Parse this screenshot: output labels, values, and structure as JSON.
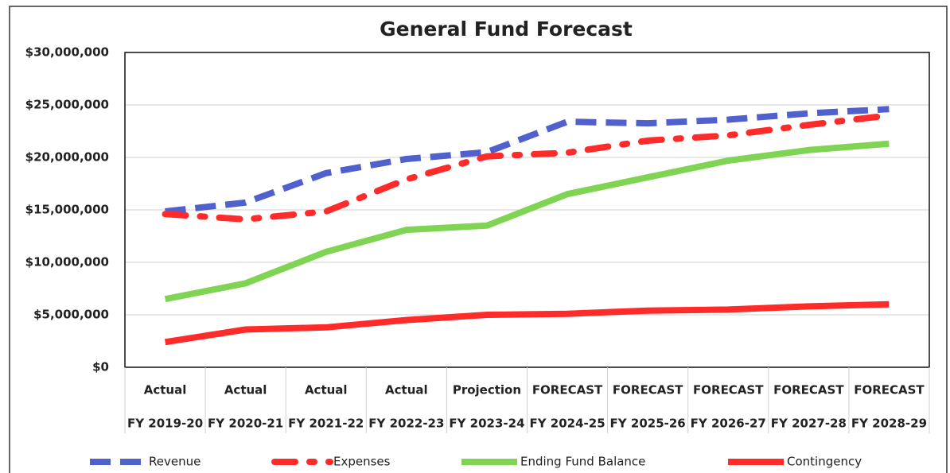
{
  "chart_data": {
    "type": "line",
    "title": "General Fund Forecast",
    "categories": [
      "FY 2019-20",
      "FY 2020-21",
      "FY 2021-22",
      "FY 2022-23",
      "FY 2023-24",
      "FY 2024-25",
      "FY 2025-26",
      "FY 2026-27",
      "FY 2027-28",
      "FY 2028-29"
    ],
    "category_groups": [
      "Actual",
      "Actual",
      "Actual",
      "Actual",
      "Projection",
      "FORECAST",
      "FORECAST",
      "FORECAST",
      "FORECAST",
      "FORECAST"
    ],
    "series": [
      {
        "name": "Revenue",
        "color": "#5060cc",
        "dash": "dash",
        "values": [
          14850000,
          15700000,
          18500000,
          19850000,
          20500000,
          23400000,
          23250000,
          23600000,
          24200000,
          24600000
        ]
      },
      {
        "name": "Expenses",
        "color": "#ff2a2a",
        "dash": "dashdot",
        "values": [
          14600000,
          14100000,
          14850000,
          17900000,
          20100000,
          20450000,
          21600000,
          22100000,
          23100000,
          24000000
        ]
      },
      {
        "name": "Ending Fund Balance",
        "color": "#80d453",
        "dash": "solid",
        "values": [
          6500000,
          8000000,
          11000000,
          13100000,
          13500000,
          16500000,
          18100000,
          19700000,
          20700000,
          21300000
        ]
      },
      {
        "name": "Contingency",
        "color": "#ff2a2a",
        "dash": "solid",
        "values": [
          2400000,
          3600000,
          3800000,
          4500000,
          5000000,
          5100000,
          5400000,
          5500000,
          5800000,
          6000000
        ]
      }
    ],
    "ylim": [
      0,
      30000000
    ],
    "yticks": [
      {
        "value": 0,
        "label": "$0"
      },
      {
        "value": 5000000,
        "label": "$5,000,000"
      },
      {
        "value": 10000000,
        "label": "$10,000,000"
      },
      {
        "value": 15000000,
        "label": "$15,000,000"
      },
      {
        "value": 20000000,
        "label": "$20,000,000"
      },
      {
        "value": 25000000,
        "label": "$25,000,000"
      },
      {
        "value": 30000000,
        "label": "$30,000,000"
      }
    ],
    "grid": true,
    "legend": "bottom"
  }
}
